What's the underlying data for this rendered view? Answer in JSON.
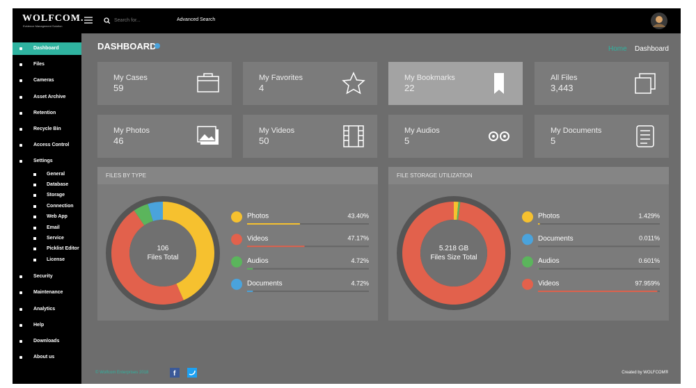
{
  "header": {
    "logo": "WOLFCOM.",
    "logo_sub": "Evidence Management Solution",
    "search_placeholder": "Search for...",
    "advanced_search": "Advanced Search"
  },
  "sidebar": {
    "items": [
      {
        "label": "Dashboard"
      },
      {
        "label": "Files"
      },
      {
        "label": "Cameras"
      },
      {
        "label": "Asset Archive"
      },
      {
        "label": "Retention"
      },
      {
        "label": "Recycle Bin"
      },
      {
        "label": "Access Control"
      },
      {
        "label": "Settings",
        "children": [
          "General",
          "Database",
          "Storage",
          "Connection",
          "Web App",
          "Email",
          "Service",
          "Picklist Editor",
          "License"
        ]
      },
      {
        "label": "Security"
      },
      {
        "label": "Maintenance"
      },
      {
        "label": "Analytics"
      },
      {
        "label": "Help"
      },
      {
        "label": "Downloads"
      },
      {
        "label": "About us"
      }
    ]
  },
  "page": {
    "title": "DASHBOARD",
    "breadcrumb": [
      "Home",
      "Dashboard"
    ]
  },
  "cards": [
    {
      "label": "My Cases",
      "value": 59
    },
    {
      "label": "My Favorites",
      "value": 4
    },
    {
      "label": "My Bookmarks",
      "value": 22
    },
    {
      "label": "All Files",
      "value": "3,443"
    },
    {
      "label": "My Photos",
      "value": 46
    },
    {
      "label": "My Videos",
      "value": 50
    },
    {
      "label": "My Audios",
      "value": 5
    },
    {
      "label": "My Documents",
      "value": 5
    }
  ],
  "panels": [
    {
      "title": "FILES BY TYPE",
      "center_value": 106,
      "center_label": "Files Total",
      "items": [
        {
          "name": "Photos",
          "color": "#f6c12f",
          "value": 43.4,
          "label": "43.40%"
        },
        {
          "name": "Videos",
          "color": "#e2614c",
          "value": 47.17,
          "label": "47.17%"
        },
        {
          "name": "Audios",
          "color": "#5bb55c",
          "value": 4.72,
          "label": "4.72%"
        },
        {
          "name": "Documents",
          "color": "#4aa3dc",
          "value": 4.72,
          "label": "4.72%"
        }
      ]
    },
    {
      "title": "FILE STORAGE UTILIZATION",
      "center_value": "5.218 GB",
      "center_label": "Files Size Total",
      "items": [
        {
          "name": "Photos",
          "color": "#f6c12f",
          "value": 1.429,
          "label": "1.429%"
        },
        {
          "name": "Documents",
          "color": "#4aa3dc",
          "value": 0.011,
          "label": "0.011%"
        },
        {
          "name": "Audios",
          "color": "#5bb55c",
          "value": 0.601,
          "label": "0.601%"
        },
        {
          "name": "Videos",
          "color": "#e2614c",
          "value": 97.959,
          "label": "97.959%"
        }
      ]
    }
  ],
  "footer": {
    "copyright": "© Wolfcom Enterprises 2018",
    "credit": "Created by WOLFCOM®"
  }
}
